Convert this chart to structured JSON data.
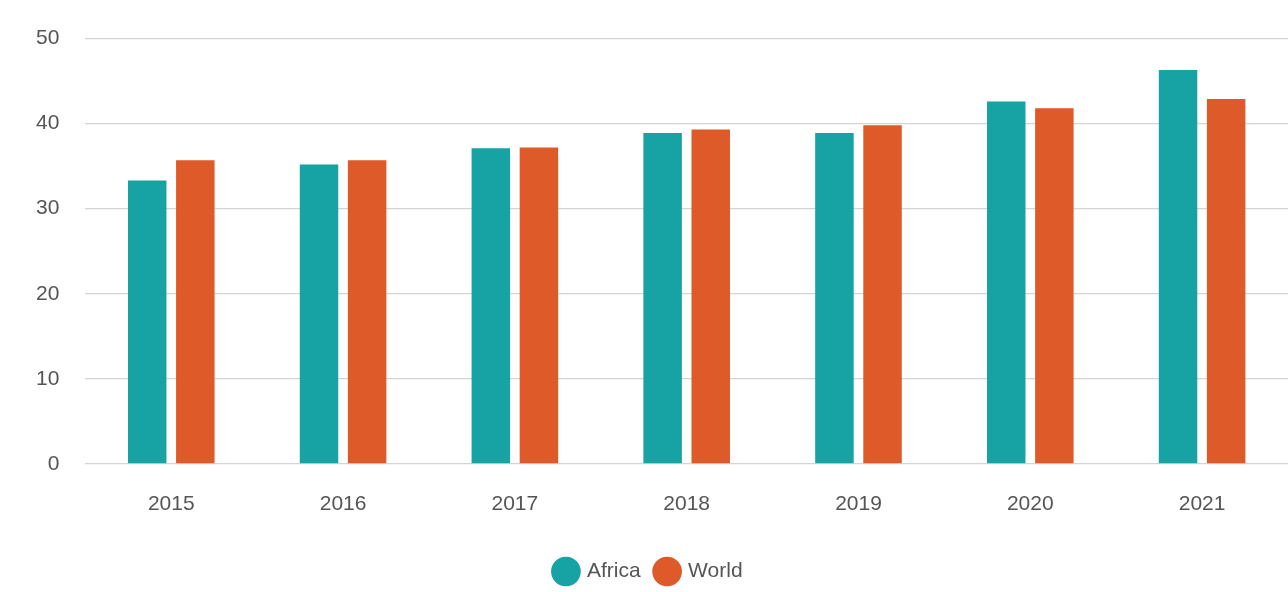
{
  "chart_data": {
    "type": "bar",
    "categories": [
      "2015",
      "2016",
      "2017",
      "2018",
      "2019",
      "2020",
      "2021"
    ],
    "series": [
      {
        "name": "Africa",
        "color": "#17a2a4",
        "values": [
          33.3,
          35.2,
          37.1,
          38.9,
          38.9,
          42.6,
          46.3
        ]
      },
      {
        "name": "World",
        "color": "#de5a29",
        "values": [
          35.7,
          35.7,
          37.2,
          39.3,
          39.8,
          41.8,
          42.9
        ]
      }
    ],
    "ylim": [
      0,
      50
    ],
    "yticks": [
      0,
      10,
      20,
      30,
      40,
      50
    ],
    "grid": "y",
    "legend": "bottom"
  }
}
